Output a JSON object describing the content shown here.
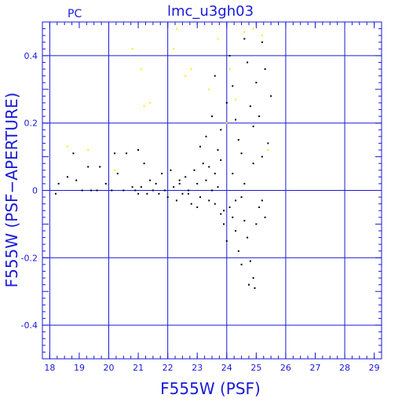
{
  "chart_data": {
    "type": "scatter",
    "title": "lmc_u3gh03",
    "corner_label": "PC",
    "xlabel": "F555W (PSF)",
    "ylabel": "F555W (PSF−APERTURE)",
    "xlim": [
      17.75,
      29.25
    ],
    "ylim": [
      -0.5,
      0.5
    ],
    "xticks": [
      18,
      19,
      20,
      21,
      22,
      23,
      24,
      25,
      26,
      27,
      28,
      29
    ],
    "yticks": [
      -0.4,
      -0.2,
      0,
      0.2,
      0.4
    ],
    "xgrid": [
      18,
      20,
      22,
      24,
      26,
      28
    ],
    "grid": true,
    "axis_color": "#1a1ad8",
    "point_color": "#000000",
    "highlight_color": "#ffee00",
    "series": [
      {
        "marker": "black",
        "points": [
          [
            18.2,
            -0.01
          ],
          [
            18.3,
            0.02
          ],
          [
            18.6,
            0.04
          ],
          [
            18.8,
            0.11
          ],
          [
            18.9,
            0.03
          ],
          [
            19.1,
            0.0
          ],
          [
            19.3,
            0.07
          ],
          [
            19.4,
            0.0
          ],
          [
            19.6,
            0.0
          ],
          [
            19.7,
            0.07
          ],
          [
            19.9,
            0.02
          ],
          [
            20.1,
            0.0
          ],
          [
            20.2,
            0.11
          ],
          [
            20.3,
            0.05
          ],
          [
            20.5,
            0.0
          ],
          [
            20.6,
            0.11
          ],
          [
            20.8,
            0.01
          ],
          [
            20.9,
            0.0
          ],
          [
            21.0,
            -0.01
          ],
          [
            21.0,
            0.12
          ],
          [
            21.1,
            0.01
          ],
          [
            21.2,
            0.08
          ],
          [
            21.3,
            -0.01
          ],
          [
            21.4,
            0.03
          ],
          [
            21.5,
            0.0
          ],
          [
            21.6,
            0.02
          ],
          [
            21.7,
            -0.01
          ],
          [
            21.8,
            0.05
          ],
          [
            21.9,
            0.0
          ],
          [
            22.0,
            -0.02
          ],
          [
            22.1,
            0.06
          ],
          [
            22.2,
            0.01
          ],
          [
            22.3,
            -0.03
          ],
          [
            22.4,
            0.02
          ],
          [
            22.5,
            -0.01
          ],
          [
            22.6,
            0.04
          ],
          [
            22.7,
            0.0
          ],
          [
            22.8,
            -0.04
          ],
          [
            22.9,
            0.06
          ],
          [
            23.0,
            0.02
          ],
          [
            23.1,
            -0.02
          ],
          [
            23.2,
            0.08
          ],
          [
            23.3,
            0.03
          ],
          [
            23.4,
            -0.03
          ],
          [
            23.5,
            0.0
          ],
          [
            23.6,
            0.05
          ],
          [
            23.7,
            0.12
          ],
          [
            23.8,
            0.18
          ],
          [
            23.9,
            -0.06
          ],
          [
            24.0,
            0.26
          ],
          [
            23.1,
            0.13
          ],
          [
            23.3,
            0.16
          ],
          [
            23.5,
            0.22
          ],
          [
            23.6,
            0.34
          ],
          [
            23.8,
            0.09
          ],
          [
            24.1,
            0.4
          ],
          [
            24.2,
            0.31
          ],
          [
            24.3,
            0.21
          ],
          [
            24.4,
            0.15
          ],
          [
            24.5,
            0.11
          ],
          [
            24.6,
            0.45
          ],
          [
            24.7,
            0.38
          ],
          [
            24.8,
            0.25
          ],
          [
            24.9,
            0.19
          ],
          [
            25.0,
            0.32
          ],
          [
            25.1,
            0.22
          ],
          [
            25.2,
            0.44
          ],
          [
            25.3,
            0.36
          ],
          [
            25.4,
            0.14
          ],
          [
            25.5,
            0.28
          ],
          [
            23.9,
            -0.1
          ],
          [
            24.0,
            -0.15
          ],
          [
            24.1,
            -0.05
          ],
          [
            24.2,
            -0.08
          ],
          [
            24.3,
            -0.12
          ],
          [
            24.4,
            -0.18
          ],
          [
            24.5,
            -0.02
          ],
          [
            24.6,
            -0.09
          ],
          [
            24.7,
            -0.14
          ],
          [
            24.8,
            -0.21
          ],
          [
            24.9,
            -0.26
          ],
          [
            25.0,
            -0.1
          ],
          [
            25.1,
            -0.05
          ],
          [
            25.2,
            -0.03
          ],
          [
            24.75,
            -0.28
          ],
          [
            24.95,
            -0.29
          ],
          [
            24.5,
            -0.22
          ],
          [
            24.3,
            -0.03
          ],
          [
            23.8,
            -0.07
          ],
          [
            23.6,
            -0.04
          ],
          [
            22.4,
            0.03
          ],
          [
            22.7,
            -0.01
          ],
          [
            23.0,
            -0.05
          ],
          [
            23.4,
            0.07
          ],
          [
            23.7,
            0.01
          ],
          [
            24.2,
            0.05
          ],
          [
            24.6,
            0.02
          ],
          [
            24.9,
            0.08
          ],
          [
            25.2,
            0.1
          ],
          [
            25.3,
            -0.08
          ]
        ]
      },
      {
        "marker": "yellow",
        "points": [
          [
            18.6,
            0.13
          ],
          [
            19.3,
            0.12
          ],
          [
            20.2,
            0.06
          ],
          [
            20.8,
            0.42
          ],
          [
            21.1,
            0.36
          ],
          [
            21.2,
            0.25
          ],
          [
            21.4,
            0.26
          ],
          [
            22.2,
            0.42
          ],
          [
            22.3,
            0.48
          ],
          [
            22.6,
            0.34
          ],
          [
            22.8,
            0.36
          ],
          [
            23.4,
            0.3
          ],
          [
            23.7,
            0.45
          ],
          [
            24.1,
            0.36
          ],
          [
            24.3,
            0.27
          ],
          [
            24.6,
            0.47
          ],
          [
            24.9,
            0.48
          ],
          [
            25.2,
            0.46
          ],
          [
            25.4,
            0.12
          ],
          [
            24.0,
            0.2
          ]
        ]
      }
    ]
  }
}
